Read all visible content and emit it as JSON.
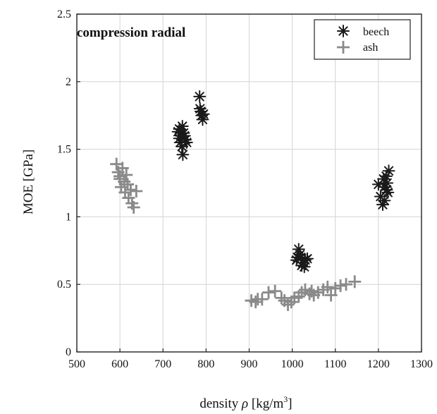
{
  "chart_data": {
    "type": "scatter",
    "title": "compression radial",
    "xlabel": {
      "prefix": "density ",
      "symbol": "ρ",
      "unit": " [kg/m",
      "sup": "3",
      "close": "]"
    },
    "ylabel": "MOE [GPa]",
    "xlim": [
      500,
      1300
    ],
    "ylim": [
      0,
      2.5
    ],
    "xticks": [
      "500",
      "600",
      "700",
      "800",
      "900",
      "1000",
      "1100",
      "1200",
      "1300"
    ],
    "yticks": [
      "0",
      "0.5",
      "1",
      "1.5",
      "2",
      "2.5"
    ],
    "xtick_values": [
      500,
      600,
      700,
      800,
      900,
      1000,
      1100,
      1200,
      1300
    ],
    "ytick_values": [
      0,
      0.5,
      1,
      1.5,
      2,
      2.5
    ],
    "grid": true,
    "legend_position": "top-right",
    "series": [
      {
        "name": "beech",
        "marker": "asterisk",
        "color": "#1a1a1a",
        "points": [
          [
            735,
            1.63
          ],
          [
            738,
            1.58
          ],
          [
            740,
            1.55
          ],
          [
            742,
            1.6
          ],
          [
            745,
            1.67
          ],
          [
            744,
            1.52
          ],
          [
            748,
            1.62
          ],
          [
            752,
            1.57
          ],
          [
            746,
            1.46
          ],
          [
            755,
            1.55
          ],
          [
            738,
            1.65
          ],
          [
            750,
            1.6
          ],
          [
            785,
            1.89
          ],
          [
            788,
            1.78
          ],
          [
            790,
            1.75
          ],
          [
            792,
            1.72
          ],
          [
            786,
            1.8
          ],
          [
            794,
            1.76
          ],
          [
            1015,
            0.76
          ],
          [
            1010,
            0.68
          ],
          [
            1020,
            0.7
          ],
          [
            1025,
            0.66
          ],
          [
            1030,
            0.68
          ],
          [
            1022,
            0.64
          ],
          [
            1035,
            0.69
          ],
          [
            1018,
            0.72
          ],
          [
            1028,
            0.63
          ],
          [
            1012,
            0.7
          ],
          [
            1200,
            1.24
          ],
          [
            1205,
            1.15
          ],
          [
            1210,
            1.09
          ],
          [
            1212,
            1.28
          ],
          [
            1215,
            1.22
          ],
          [
            1218,
            1.3
          ],
          [
            1220,
            1.25
          ],
          [
            1222,
            1.18
          ],
          [
            1224,
            1.34
          ],
          [
            1214,
            1.12
          ],
          [
            1219,
            1.2
          ]
        ]
      },
      {
        "name": "ash",
        "marker": "plus",
        "color": "#8a8a8a",
        "points": [
          [
            592,
            1.39
          ],
          [
            596,
            1.33
          ],
          [
            600,
            1.28
          ],
          [
            603,
            1.22
          ],
          [
            606,
            1.36
          ],
          [
            610,
            1.26
          ],
          [
            612,
            1.18
          ],
          [
            618,
            1.24
          ],
          [
            620,
            1.14
          ],
          [
            625,
            1.2
          ],
          [
            628,
            1.1
          ],
          [
            632,
            1.07
          ],
          [
            638,
            1.19
          ],
          [
            600,
            1.3
          ],
          [
            615,
            1.31
          ],
          [
            905,
            0.38
          ],
          [
            915,
            0.37
          ],
          [
            920,
            0.39
          ],
          [
            930,
            0.39
          ],
          [
            945,
            0.44
          ],
          [
            960,
            0.45
          ],
          [
            975,
            0.4
          ],
          [
            982,
            0.38
          ],
          [
            990,
            0.35
          ],
          [
            998,
            0.37
          ],
          [
            1005,
            0.4
          ],
          [
            1015,
            0.41
          ],
          [
            1022,
            0.44
          ],
          [
            1030,
            0.46
          ],
          [
            1040,
            0.43
          ],
          [
            1045,
            0.45
          ],
          [
            1050,
            0.42
          ],
          [
            1060,
            0.44
          ],
          [
            1072,
            0.46
          ],
          [
            1082,
            0.48
          ],
          [
            1090,
            0.42
          ],
          [
            1100,
            0.47
          ],
          [
            1112,
            0.49
          ],
          [
            1125,
            0.5
          ],
          [
            1145,
            0.52
          ]
        ]
      }
    ]
  }
}
